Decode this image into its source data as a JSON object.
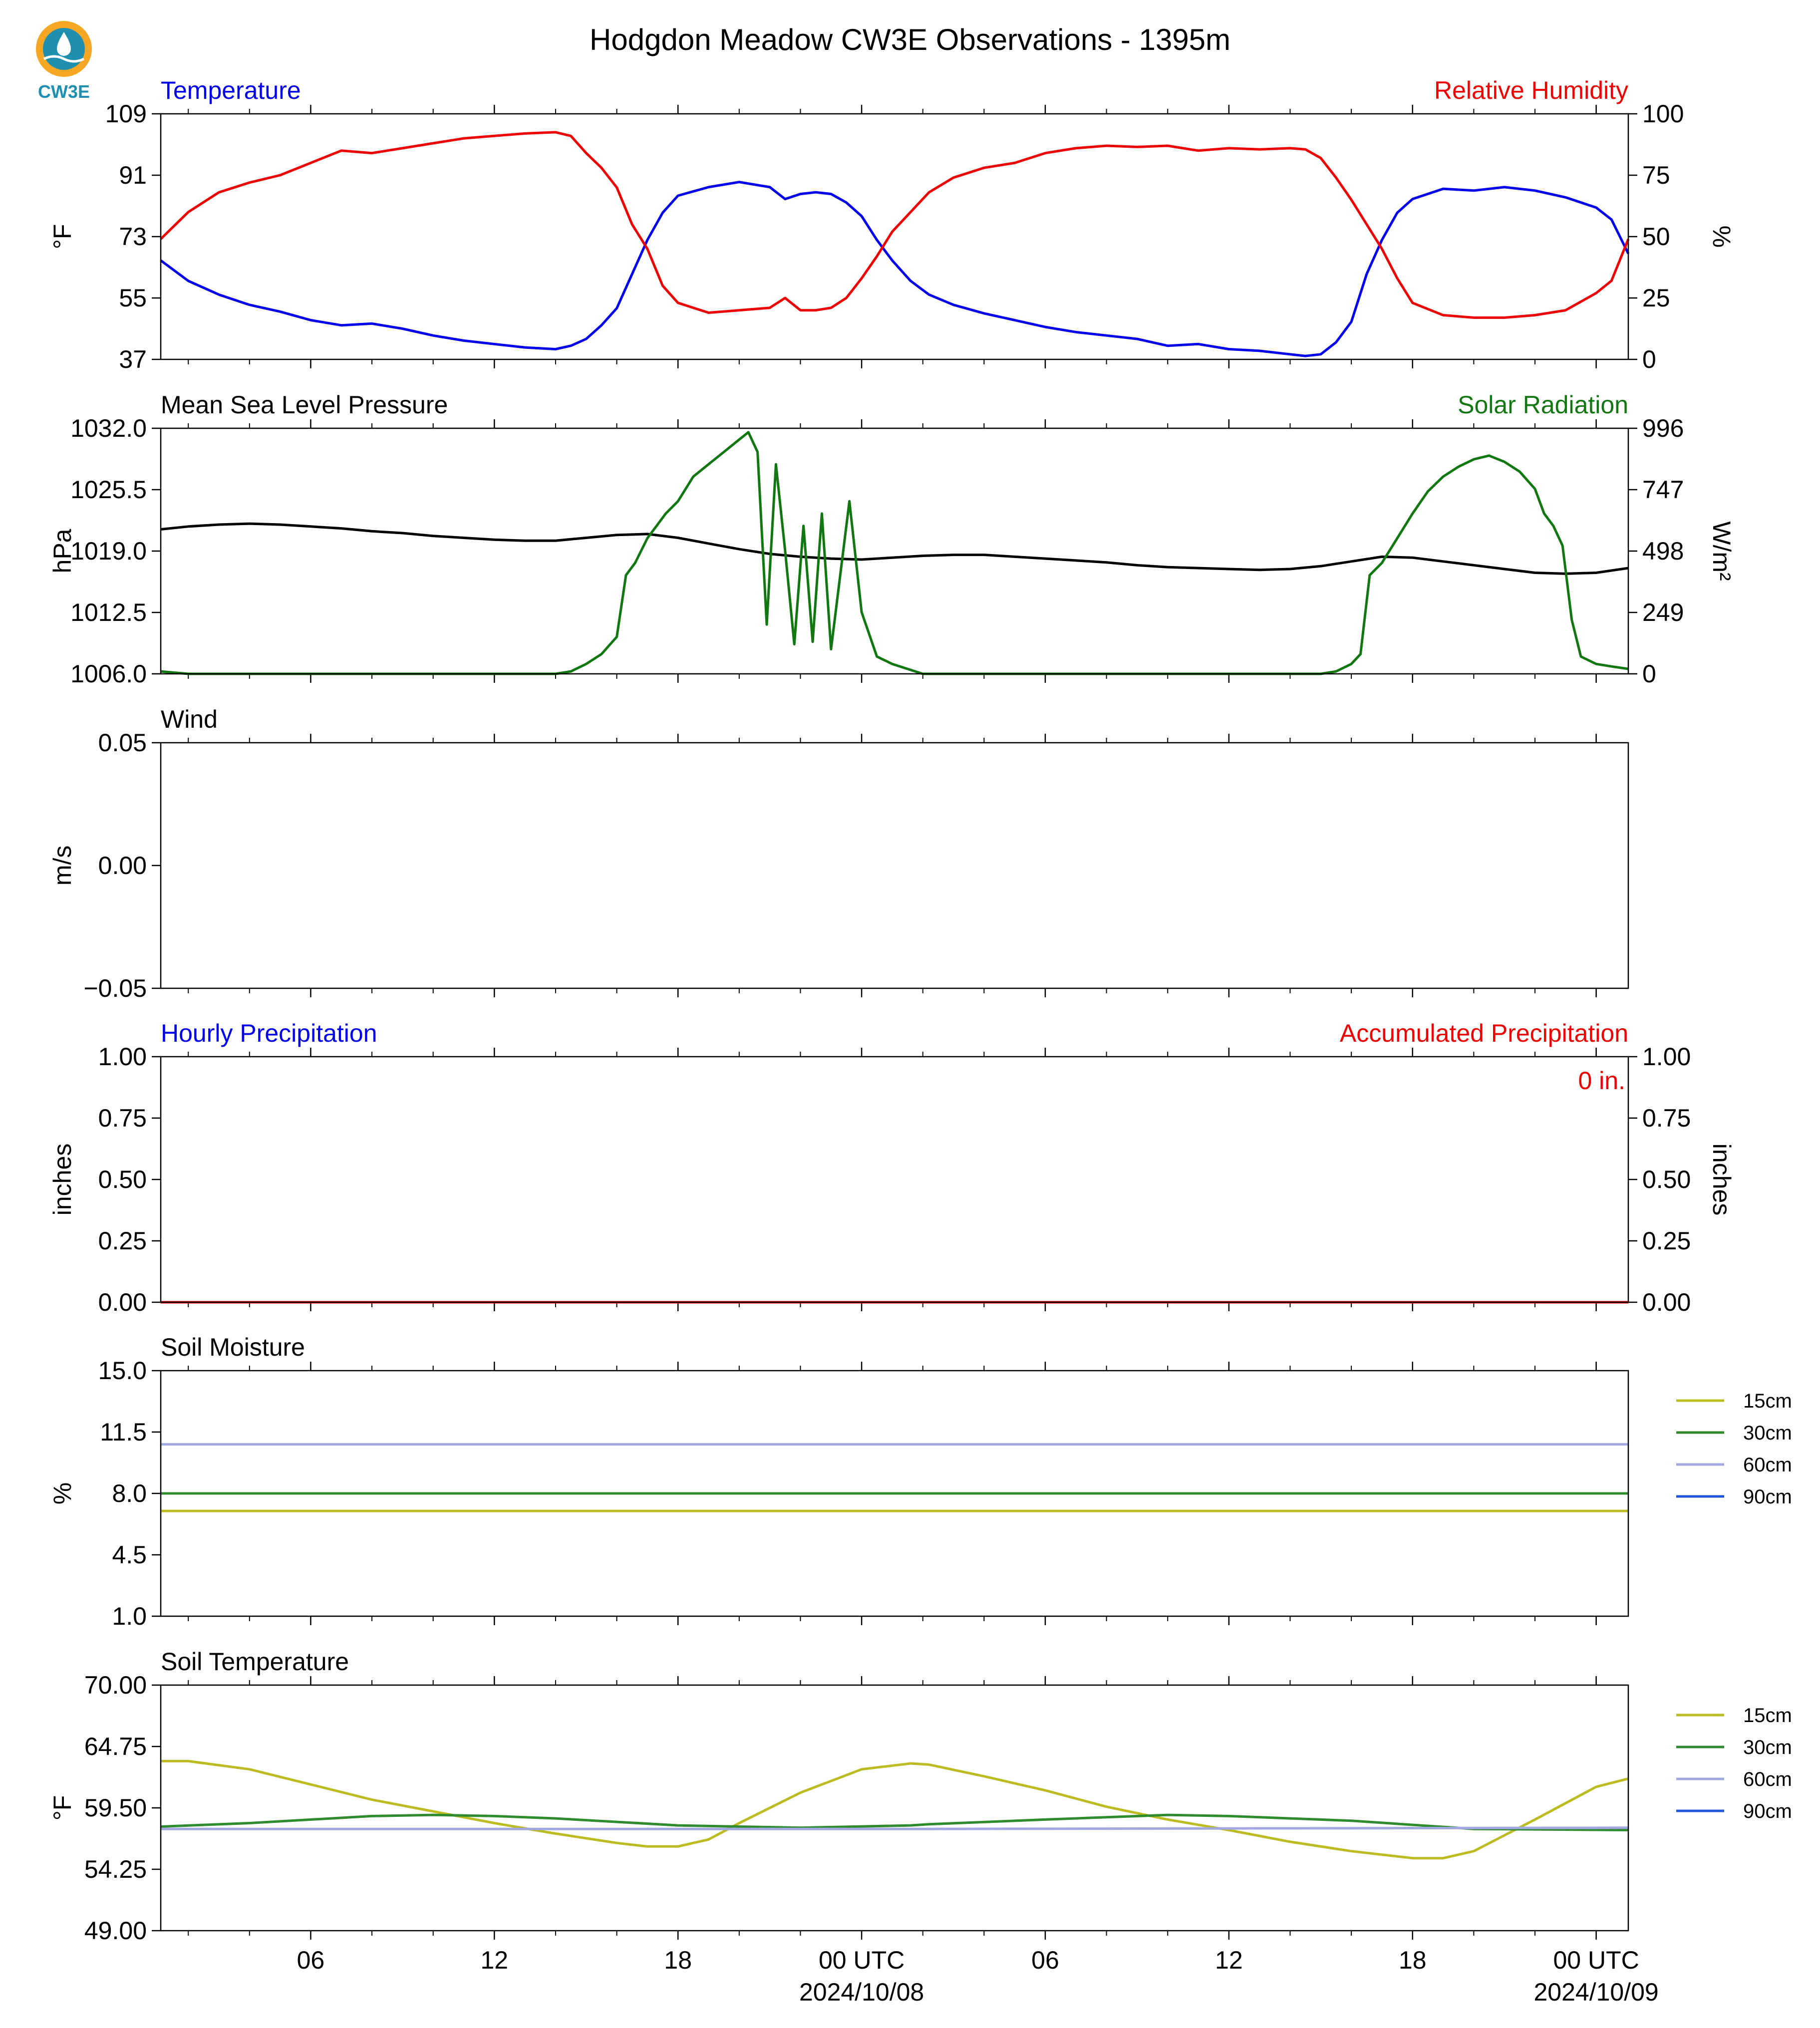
{
  "figure": {
    "title": "Hodgdon Meadow CW3E Observations - 1395m",
    "logo_text": "CW3E"
  },
  "colors": {
    "blue": "#0000ee",
    "red": "#ee0000",
    "green": "#117711",
    "black": "#000000",
    "soil_15": "#bbbb22",
    "soil_30": "#2e8b2e",
    "soil_60": "#9fa8e0",
    "soil_90": "#2255dd",
    "logo_orange": "#f5a623",
    "logo_teal": "#1f8fb0"
  },
  "time_axis": {
    "start_hour": 1.1,
    "end_hour": 49.05,
    "ticks": [
      {
        "hour": 6,
        "label": "06"
      },
      {
        "hour": 12,
        "label": "12"
      },
      {
        "hour": 18,
        "label": "18"
      },
      {
        "hour": 24,
        "label": "00 UTC",
        "date": "2024/10/08"
      },
      {
        "hour": 30,
        "label": "06"
      },
      {
        "hour": 36,
        "label": "12"
      },
      {
        "hour": 42,
        "label": "18"
      },
      {
        "hour": 48,
        "label": "00 UTC",
        "date": "2024/10/09"
      }
    ]
  },
  "chart_data": [
    {
      "id": "temp_rh",
      "type": "line",
      "left_title": "Temperature",
      "right_title": "Relative Humidity",
      "ylabel": "°F",
      "ylabel_right": "%",
      "ylim": [
        37,
        109
      ],
      "ylim_right": [
        0,
        100
      ],
      "yticks": [
        "37",
        "55",
        "73",
        "91",
        "109"
      ],
      "yticks_right": [
        "0",
        "25",
        "50",
        "75",
        "100"
      ],
      "series": [
        {
          "name": "Temperature",
          "axis": "left",
          "color": "#0000ee",
          "x": [
            1.1,
            2,
            3,
            4,
            5,
            6,
            7,
            8,
            9,
            10,
            11,
            12,
            13,
            14,
            14.5,
            15,
            15.5,
            16,
            16.5,
            17,
            17.5,
            18,
            19,
            20,
            21,
            21.5,
            22,
            22.5,
            23,
            23.5,
            24,
            24.5,
            25,
            25.6,
            26.2,
            27,
            28,
            29,
            30,
            31,
            32,
            33,
            34,
            35,
            36,
            37,
            38,
            38.5,
            39,
            39.5,
            40,
            40.5,
            41,
            41.5,
            42,
            43,
            44,
            45,
            46,
            47,
            48,
            48.5,
            49.05
          ],
          "y": [
            66,
            60,
            56,
            53,
            51,
            48.5,
            47,
            47.5,
            46,
            44,
            42.5,
            41.5,
            40.5,
            40,
            41,
            43,
            47,
            52,
            62,
            72,
            80,
            85,
            87.5,
            89,
            87.5,
            84,
            85.5,
            86,
            85.5,
            83,
            79,
            72,
            66,
            60,
            56,
            53,
            50.5,
            48.5,
            46.5,
            45,
            44,
            43,
            41,
            41.5,
            40,
            39.5,
            38.5,
            38,
            38.5,
            42,
            48,
            62,
            72,
            80,
            84,
            87,
            86.5,
            87.5,
            86.5,
            84.5,
            81.5,
            78,
            68
          ]
        },
        {
          "name": "Relative Humidity",
          "axis": "right",
          "color": "#ee0000",
          "x": [
            1.1,
            2,
            3,
            4,
            5,
            6,
            7,
            8,
            9,
            10,
            11,
            12,
            13,
            14,
            14.5,
            15,
            15.5,
            16,
            16.5,
            17,
            17.5,
            18,
            19,
            20,
            21,
            21.5,
            22,
            22.5,
            23,
            23.5,
            24,
            24.5,
            25,
            25.6,
            26.2,
            27,
            28,
            29,
            30,
            31,
            32,
            33,
            34,
            35,
            36,
            37,
            38,
            38.5,
            39,
            39.5,
            40,
            40.5,
            41,
            41.5,
            42,
            43,
            44,
            45,
            46,
            47,
            48,
            48.5,
            49.05
          ],
          "y": [
            49,
            60,
            68,
            72,
            75,
            80,
            85,
            84,
            86,
            88,
            90,
            91,
            92,
            92.5,
            91,
            84,
            78,
            70,
            55,
            45,
            30,
            23,
            19,
            20,
            21,
            25,
            20,
            20,
            21,
            25,
            33,
            42,
            52,
            60,
            68,
            74,
            78,
            80,
            84,
            86,
            87,
            86.5,
            87,
            85,
            86,
            85.5,
            86,
            85.5,
            82,
            74,
            65,
            55,
            45,
            33,
            23,
            18,
            17,
            17,
            18,
            20,
            27,
            32,
            49
          ]
        }
      ]
    },
    {
      "id": "pres_solar",
      "type": "line",
      "left_title": "Mean Sea Level Pressure",
      "right_title": "Solar Radiation",
      "ylabel": "hPa",
      "ylabel_right": "W/m²",
      "ylim": [
        1006.0,
        1032.0
      ],
      "ylim_right": [
        0,
        996
      ],
      "yticks": [
        "1006.0",
        "1012.5",
        "1019.0",
        "1025.5",
        "1032.0"
      ],
      "yticks_right": [
        "0",
        "249",
        "498",
        "747",
        "996"
      ],
      "series": [
        {
          "name": "Mean Sea Level Pressure",
          "axis": "left",
          "color": "#000000",
          "x": [
            1.1,
            2,
            3,
            4,
            5,
            6,
            7,
            8,
            9,
            10,
            11,
            12,
            13,
            14,
            15,
            16,
            17,
            18,
            19,
            20,
            21,
            22,
            23,
            24,
            25,
            26,
            27,
            28,
            29,
            30,
            31,
            32,
            33,
            34,
            35,
            36,
            37,
            38,
            39,
            40,
            41,
            42,
            43,
            44,
            45,
            46,
            47,
            48,
            49.05
          ],
          "y": [
            1021.3,
            1021.6,
            1021.8,
            1021.9,
            1021.8,
            1021.6,
            1021.4,
            1021.1,
            1020.9,
            1020.6,
            1020.4,
            1020.2,
            1020.1,
            1020.1,
            1020.4,
            1020.7,
            1020.8,
            1020.4,
            1019.8,
            1019.2,
            1018.7,
            1018.4,
            1018.2,
            1018.1,
            1018.3,
            1018.5,
            1018.6,
            1018.6,
            1018.4,
            1018.2,
            1018.0,
            1017.8,
            1017.5,
            1017.3,
            1017.2,
            1017.1,
            1017.0,
            1017.1,
            1017.4,
            1017.9,
            1018.4,
            1018.3,
            1017.9,
            1017.5,
            1017.1,
            1016.7,
            1016.6,
            1016.7,
            1017.2
          ]
        },
        {
          "name": "Solar Radiation",
          "axis": "right",
          "color": "#117711",
          "x": [
            1.1,
            2,
            4,
            6,
            8,
            10,
            12,
            14,
            14.5,
            15,
            15.5,
            16,
            16.3,
            16.6,
            17,
            17.3,
            17.6,
            18,
            18.5,
            19,
            19.5,
            20,
            20.3,
            20.6,
            20.9,
            21.2,
            21.5,
            21.8,
            22.1,
            22.4,
            22.7,
            23,
            23.3,
            23.6,
            24,
            24.5,
            25,
            26,
            28,
            30,
            32,
            34,
            36,
            38,
            39,
            39.5,
            40,
            40.3,
            40.6,
            41,
            41.5,
            42,
            42.5,
            43,
            43.5,
            44,
            44.5,
            45,
            45.5,
            46,
            46.3,
            46.6,
            46.9,
            47.2,
            47.5,
            48,
            48.5,
            49.05
          ],
          "y": [
            10,
            0,
            0,
            0,
            0,
            0,
            0,
            0,
            10,
            40,
            80,
            150,
            400,
            450,
            550,
            600,
            650,
            700,
            800,
            850,
            900,
            950,
            980,
            900,
            200,
            850,
            500,
            120,
            600,
            130,
            650,
            100,
            400,
            700,
            250,
            70,
            40,
            0,
            0,
            0,
            0,
            0,
            0,
            0,
            0,
            10,
            40,
            80,
            400,
            450,
            550,
            650,
            740,
            800,
            840,
            870,
            885,
            860,
            820,
            750,
            650,
            600,
            520,
            220,
            70,
            40,
            30,
            20
          ]
        }
      ]
    },
    {
      "id": "wind",
      "type": "line",
      "left_title": "Wind",
      "ylabel": "m/s",
      "ylim": [
        -0.055,
        0.055
      ],
      "yticks": [
        "−0.05",
        "0.00",
        "0.05"
      ],
      "series": []
    },
    {
      "id": "precip",
      "type": "line",
      "left_title": "Hourly Precipitation",
      "right_title": "Accumulated Precipitation",
      "ylabel": "inches",
      "ylabel_right": "inches",
      "ylim": [
        0,
        1.0
      ],
      "ylim_right": [
        0,
        1.0
      ],
      "yticks": [
        "0.00",
        "0.25",
        "0.50",
        "0.75",
        "1.00"
      ],
      "yticks_right": [
        "0.00",
        "0.25",
        "0.50",
        "0.75",
        "1.00"
      ],
      "annotation": "0 in.",
      "series": [
        {
          "name": "Hourly Precipitation",
          "axis": "left",
          "color": "#0000ee",
          "x": [
            1.1,
            49.05
          ],
          "y": [
            0,
            0
          ]
        },
        {
          "name": "Accumulated Precipitation",
          "axis": "right",
          "color": "#ee0000",
          "x": [
            1.1,
            49.05
          ],
          "y": [
            0,
            0
          ]
        }
      ]
    },
    {
      "id": "soil_moisture",
      "type": "line",
      "left_title": "Soil Moisture",
      "ylabel": "%",
      "ylim": [
        1.0,
        15.0
      ],
      "yticks": [
        "1.0",
        "4.5",
        "8.0",
        "11.5",
        "15.0"
      ],
      "legend": [
        "15cm",
        "30cm",
        "60cm",
        "90cm"
      ],
      "series": [
        {
          "name": "15cm",
          "color": "#bbbb22",
          "x": [
            1.1,
            25.6,
            26.2,
            49.05
          ],
          "y": [
            7.0,
            7.0,
            7.0,
            7.0
          ]
        },
        {
          "name": "30cm",
          "color": "#2e8b2e",
          "x": [
            1.1,
            25.6,
            26.2,
            49.05
          ],
          "y": [
            8.0,
            8.0,
            8.0,
            8.0
          ]
        },
        {
          "name": "60cm",
          "color": "#9fa8e0",
          "x": [
            1.1,
            25.6,
            26.2,
            49.05
          ],
          "y": [
            10.8,
            10.8,
            10.8,
            10.8
          ]
        }
      ]
    },
    {
      "id": "soil_temp",
      "type": "line",
      "left_title": "Soil Temperature",
      "ylabel": "°F",
      "ylim": [
        49.0,
        70.0
      ],
      "yticks": [
        "49.00",
        "54.25",
        "59.50",
        "64.75",
        "70.00"
      ],
      "legend": [
        "15cm",
        "30cm",
        "60cm",
        "90cm"
      ],
      "series": [
        {
          "name": "15cm",
          "color": "#bbbb22",
          "x": [
            1.1,
            2,
            4,
            6,
            8,
            10,
            12,
            14,
            16,
            17,
            18,
            19,
            20,
            22,
            24,
            25.6,
            26.2,
            28,
            30,
            32,
            34,
            36,
            38,
            40,
            42,
            43,
            44,
            46,
            48,
            49.05
          ],
          "y": [
            63.5,
            63.5,
            62.8,
            61.5,
            60.2,
            59.2,
            58.2,
            57.3,
            56.5,
            56.2,
            56.2,
            56.8,
            58.2,
            60.8,
            62.8,
            63.3,
            63.2,
            62.2,
            61.0,
            59.6,
            58.5,
            57.6,
            56.6,
            55.8,
            55.2,
            55.2,
            55.8,
            58.5,
            61.3,
            62.0
          ]
        },
        {
          "name": "30cm",
          "color": "#2e8b2e",
          "x": [
            1.1,
            4,
            8,
            10,
            12,
            14,
            18,
            22,
            25.6,
            26.2,
            30,
            34,
            36,
            40,
            44,
            49.05
          ],
          "y": [
            57.9,
            58.2,
            58.8,
            58.9,
            58.8,
            58.6,
            58.0,
            57.8,
            58.0,
            58.1,
            58.5,
            58.9,
            58.8,
            58.4,
            57.7,
            57.6
          ]
        },
        {
          "name": "60cm",
          "color": "#9fa8e0",
          "x": [
            1.1,
            25.6,
            26.2,
            49.05
          ],
          "y": [
            57.7,
            57.7,
            57.7,
            57.8
          ]
        }
      ]
    }
  ]
}
